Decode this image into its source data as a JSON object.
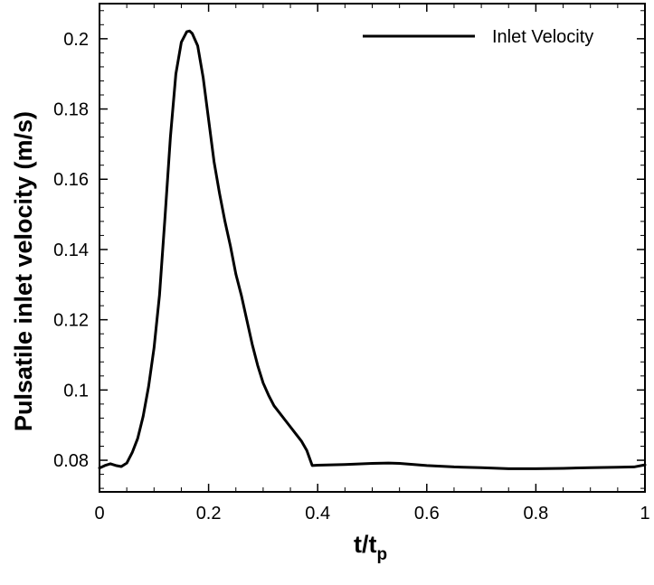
{
  "chart_data": {
    "type": "line",
    "title": "",
    "xlabel": "t/t",
    "xlabel_sub": "p",
    "ylabel": "Pulsatile inlet velocity (m/s)",
    "xlim": [
      0,
      1
    ],
    "ylim": [
      0.071,
      0.21
    ],
    "x_ticks": [
      0,
      0.2,
      0.4,
      0.6,
      0.8,
      1
    ],
    "x_tick_labels": [
      "0",
      "0.2",
      "0.4",
      "0.6",
      "0.8",
      "1"
    ],
    "y_ticks": [
      0.08,
      0.1,
      0.12,
      0.14,
      0.16,
      0.18,
      0.2
    ],
    "y_tick_labels": [
      "0.08",
      "0.1",
      "0.12",
      "0.14",
      "0.16",
      "0.18",
      "0.2"
    ],
    "grid": false,
    "legend_position": "top-right",
    "line_color": "#000000",
    "series": [
      {
        "name": "Inlet Velocity",
        "x": [
          0,
          0.01,
          0.02,
          0.03,
          0.04,
          0.05,
          0.06,
          0.07,
          0.08,
          0.09,
          0.1,
          0.11,
          0.12,
          0.13,
          0.14,
          0.15,
          0.16,
          0.165,
          0.17,
          0.18,
          0.19,
          0.2,
          0.21,
          0.22,
          0.23,
          0.24,
          0.25,
          0.26,
          0.27,
          0.28,
          0.29,
          0.3,
          0.31,
          0.32,
          0.33,
          0.34,
          0.35,
          0.36,
          0.37,
          0.38,
          0.39,
          0.4,
          0.45,
          0.5,
          0.53,
          0.55,
          0.6,
          0.65,
          0.7,
          0.75,
          0.8,
          0.85,
          0.9,
          0.95,
          0.98,
          1.0
        ],
        "y": [
          0.0778,
          0.0785,
          0.079,
          0.0785,
          0.0782,
          0.0792,
          0.0822,
          0.0862,
          0.0925,
          0.101,
          0.112,
          0.127,
          0.149,
          0.172,
          0.19,
          0.199,
          0.202,
          0.2022,
          0.2015,
          0.198,
          0.189,
          0.177,
          0.165,
          0.156,
          0.148,
          0.141,
          0.133,
          0.127,
          0.12,
          0.113,
          0.107,
          0.102,
          0.0985,
          0.0955,
          0.0935,
          0.0915,
          0.0895,
          0.0875,
          0.0855,
          0.0828,
          0.0785,
          0.0786,
          0.0788,
          0.0791,
          0.0792,
          0.0791,
          0.0785,
          0.0781,
          0.0779,
          0.0776,
          0.0776,
          0.0777,
          0.0779,
          0.078,
          0.0781,
          0.0787
        ]
      }
    ]
  }
}
